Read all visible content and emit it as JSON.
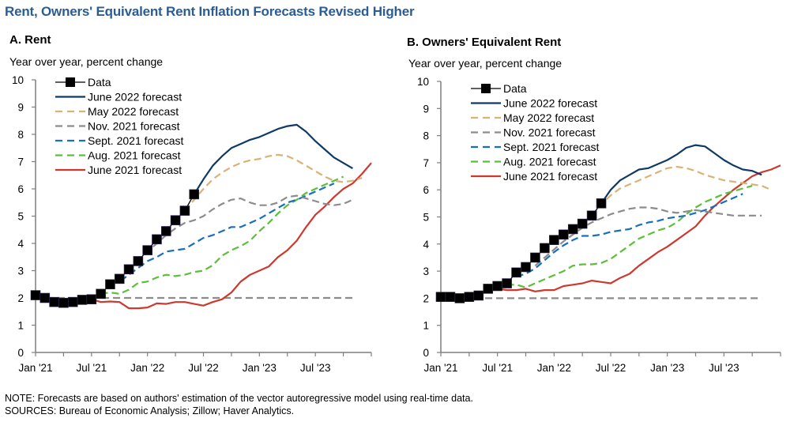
{
  "title": "Rent, Owners' Equivalent Rent Inflation Forecasts Revised Higher",
  "note": "NOTE: Forecasts are based on authors' estimation of the vector autoregressive model using real-time data.",
  "sources": "SOURCES: Bureau of Economic Analysis; Zillow; Haver Analytics.",
  "colors": {
    "title": "#2a5d95",
    "data": "#000000",
    "june2022": "#0f3a64",
    "may2022": "#d9b277",
    "nov2021": "#8c8c8c",
    "sept2021": "#1a6fbd",
    "aug2021": "#5cbf3a",
    "june2021": "#cc3a2f"
  },
  "chart_data": [
    {
      "type": "line",
      "panel": "A",
      "title": "A. Rent",
      "ylabel": "Year over year, percent change",
      "xlabel": "",
      "ylim": [
        0,
        10
      ],
      "yticks": [
        "0",
        "1",
        "2",
        "3",
        "4",
        "5",
        "6",
        "7",
        "8",
        "9",
        "10"
      ],
      "xlim_months_since_jan21": [
        0,
        36
      ],
      "xtick_labels": [
        "Jan '21",
        "Jul '21",
        "Jan '22",
        "Jul '22",
        "Jan '23",
        "Jul '23"
      ],
      "xtick_label_months": [
        0,
        6,
        12,
        18,
        24,
        30
      ],
      "minor_tick_months": [
        0,
        3,
        6,
        9,
        12,
        15,
        18,
        21,
        24,
        27,
        30,
        33,
        36
      ],
      "legend": [
        "Data",
        "June 2022 forecast",
        "May 2022 forecast",
        "Nov. 2021 forecast",
        "Sept. 2021 forecast",
        "Aug. 2021 forecast",
        "June 2021 forecast"
      ],
      "legend_position": "top-left",
      "series": [
        {
          "name": "Nov. 2021 forecast",
          "style": "dashed",
          "color_key": "nov2021",
          "start_month": 0,
          "values": [
            2.0,
            2.0,
            2.0,
            2.0,
            2.0,
            2.0,
            2.0,
            2.0,
            2.0,
            2.0,
            2.0,
            2.0,
            2.0,
            2.0,
            2.0,
            2.0,
            2.0,
            2.0,
            2.0,
            2.0,
            2.0,
            2.0,
            2.0,
            2.0,
            2.0,
            2.0,
            2.0,
            2.0,
            2.0,
            2.0,
            2.0,
            2.0,
            2.0,
            2.0,
            2.0
          ]
        },
        {
          "name": "June 2021 forecast",
          "style": "solid",
          "color_key": "june2021",
          "start_month": 6,
          "values": [
            1.95,
            1.85,
            1.87,
            1.85,
            1.62,
            1.62,
            1.65,
            1.8,
            1.78,
            1.85,
            1.85,
            1.78,
            1.72,
            1.85,
            1.95,
            2.2,
            2.6,
            2.85,
            3.0,
            3.15,
            3.5,
            3.75,
            4.1,
            4.6,
            5.05,
            5.35,
            5.7,
            6.0,
            6.2,
            6.55,
            6.95
          ]
        },
        {
          "name": "Aug. 2021 forecast",
          "style": "dashed",
          "color_key": "aug2021",
          "start_month": 7,
          "values": [
            2.15,
            2.2,
            2.15,
            2.3,
            2.55,
            2.6,
            2.75,
            2.85,
            2.8,
            2.85,
            2.95,
            3.0,
            3.2,
            3.55,
            3.75,
            3.9,
            4.1,
            4.45,
            4.75,
            5.1,
            5.4,
            5.6,
            5.85,
            6.0,
            6.15,
            6.3,
            6.45
          ]
        },
        {
          "name": "Sept. 2021 forecast",
          "style": "dashed",
          "color_key": "sept2021",
          "start_month": 8,
          "values": [
            2.5,
            2.6,
            2.85,
            3.1,
            3.35,
            3.5,
            3.7,
            3.75,
            3.8,
            4.0,
            4.2,
            4.3,
            4.45,
            4.6,
            4.6,
            4.75,
            4.9,
            5.1,
            5.3,
            5.5,
            5.6,
            5.75,
            5.9,
            6.05,
            6.2
          ]
        },
        {
          "name": "Nov. 2021 forecast (projection)",
          "style": "dashed",
          "color_key": "nov2021",
          "start_month": 10,
          "values": [
            3.05,
            3.35,
            3.7,
            4.0,
            4.3,
            4.55,
            4.75,
            4.85,
            5.0,
            5.25,
            5.45,
            5.6,
            5.65,
            5.5,
            5.4,
            5.4,
            5.5,
            5.7,
            5.75,
            5.65,
            5.55,
            5.45,
            5.4,
            5.45,
            5.6
          ]
        },
        {
          "name": "May 2022 forecast",
          "style": "dashed",
          "color_key": "may2022",
          "start_month": 16,
          "values": [
            5.2,
            5.6,
            6.0,
            6.35,
            6.6,
            6.8,
            6.95,
            7.05,
            7.1,
            7.2,
            7.25,
            7.2,
            7.05,
            6.85,
            6.65,
            6.45,
            6.3,
            6.25,
            6.3,
            6.4
          ]
        },
        {
          "name": "June 2022 forecast",
          "style": "solid",
          "color_key": "june2022",
          "start_month": 17,
          "values": [
            5.8,
            6.35,
            6.85,
            7.2,
            7.5,
            7.65,
            7.8,
            7.9,
            8.05,
            8.2,
            8.3,
            8.35,
            8.1,
            7.75,
            7.45,
            7.15,
            6.95,
            6.75
          ]
        },
        {
          "name": "Data",
          "style": "solid-markers",
          "color_key": "data",
          "start_month": 0,
          "values": [
            2.1,
            2.0,
            1.85,
            1.82,
            1.85,
            1.93,
            1.95,
            2.15,
            2.5,
            2.7,
            3.05,
            3.35,
            3.75,
            4.15,
            4.45,
            4.85,
            5.2,
            5.8
          ]
        }
      ]
    },
    {
      "type": "line",
      "panel": "B",
      "title": "B. Owners' Equivalent Rent",
      "ylabel": "Year over year, percent change",
      "xlabel": "",
      "ylim": [
        0,
        10
      ],
      "yticks": [
        "0",
        "1",
        "2",
        "3",
        "4",
        "5",
        "6",
        "7",
        "8",
        "9",
        "10"
      ],
      "xlim_months_since_jan21": [
        0,
        36
      ],
      "xtick_labels": [
        "Jan '21",
        "Jul '21",
        "Jan '22",
        "Jul '22",
        "Jan '23",
        "Jul '23"
      ],
      "xtick_label_months": [
        0,
        6,
        12,
        18,
        24,
        30
      ],
      "minor_tick_months": [
        0,
        3,
        6,
        9,
        12,
        15,
        18,
        21,
        24,
        27,
        30,
        33,
        36
      ],
      "legend": [
        "Data",
        "June 2022 forecast",
        "May 2022 forecast",
        "Nov. 2021 forecast",
        "Sept. 2021 forecast",
        "Aug. 2021 forecast",
        "June 2021 forecast"
      ],
      "legend_position": "top-left",
      "series": [
        {
          "name": "Nov. 2021 forecast",
          "style": "dashed",
          "color_key": "nov2021",
          "start_month": 0,
          "values": [
            2.0,
            2.0,
            2.0,
            2.0,
            2.0,
            2.0,
            2.0,
            2.0,
            2.0,
            2.0,
            2.0,
            2.0,
            2.0,
            2.0,
            2.0,
            2.0,
            2.0,
            2.0,
            2.0,
            2.0,
            2.0,
            2.0,
            2.0,
            2.0,
            2.0,
            2.0,
            2.0,
            2.0,
            2.0,
            2.0,
            2.0,
            2.0,
            2.0,
            2.0,
            2.0
          ]
        },
        {
          "name": "June 2021 forecast",
          "style": "solid",
          "color_key": "june2021",
          "start_month": 6,
          "values": [
            2.35,
            2.3,
            2.3,
            2.35,
            2.25,
            2.3,
            2.3,
            2.45,
            2.5,
            2.55,
            2.65,
            2.6,
            2.55,
            2.75,
            2.9,
            3.2,
            3.45,
            3.7,
            3.9,
            4.15,
            4.4,
            4.65,
            5.05,
            5.4,
            5.7,
            6.0,
            6.25,
            6.5,
            6.65,
            6.75,
            6.9
          ]
        },
        {
          "name": "Aug. 2021 forecast",
          "style": "dashed",
          "color_key": "aug2021",
          "start_month": 7,
          "values": [
            2.5,
            2.5,
            2.4,
            2.55,
            2.7,
            2.85,
            3.0,
            3.2,
            3.25,
            3.25,
            3.3,
            3.45,
            3.7,
            3.95,
            4.2,
            4.35,
            4.5,
            4.6,
            4.8,
            5.1,
            5.35,
            5.55,
            5.7,
            5.85,
            5.95,
            6.05,
            6.15
          ]
        },
        {
          "name": "Sept. 2021 forecast",
          "style": "dashed",
          "color_key": "sept2021",
          "start_month": 8,
          "values": [
            2.8,
            2.9,
            3.1,
            3.4,
            3.7,
            3.95,
            4.15,
            4.3,
            4.3,
            4.35,
            4.45,
            4.5,
            4.55,
            4.7,
            4.8,
            4.85,
            4.95,
            5.0,
            5.05,
            5.15,
            5.25,
            5.4,
            5.55,
            5.7,
            5.85
          ]
        },
        {
          "name": "Nov. 2021 forecast (projection)",
          "style": "dashed",
          "color_key": "nov2021",
          "start_month": 10,
          "values": [
            3.2,
            3.5,
            3.8,
            4.1,
            4.35,
            4.6,
            4.8,
            4.95,
            5.1,
            5.2,
            5.3,
            5.35,
            5.35,
            5.3,
            5.2,
            5.15,
            5.2,
            5.25,
            5.2,
            5.15,
            5.1,
            5.05,
            5.05,
            5.05,
            5.05
          ]
        },
        {
          "name": "May 2022 forecast",
          "style": "dashed",
          "color_key": "may2022",
          "start_month": 16,
          "values": [
            5.05,
            5.45,
            5.8,
            6.05,
            6.2,
            6.35,
            6.5,
            6.65,
            6.8,
            6.85,
            6.8,
            6.7,
            6.55,
            6.45,
            6.35,
            6.3,
            6.25,
            6.2,
            6.15,
            6.0
          ]
        },
        {
          "name": "June 2022 forecast",
          "style": "solid",
          "color_key": "june2022",
          "start_month": 17,
          "values": [
            5.5,
            6.0,
            6.35,
            6.55,
            6.75,
            6.8,
            6.95,
            7.1,
            7.3,
            7.55,
            7.65,
            7.6,
            7.35,
            7.1,
            6.9,
            6.75,
            6.7,
            6.55
          ]
        },
        {
          "name": "Data",
          "style": "solid-markers",
          "color_key": "data",
          "start_month": 0,
          "values": [
            2.05,
            2.05,
            2.0,
            2.05,
            2.1,
            2.35,
            2.45,
            2.55,
            2.95,
            3.15,
            3.5,
            3.85,
            4.15,
            4.35,
            4.55,
            4.75,
            5.05,
            5.5
          ]
        }
      ]
    }
  ]
}
